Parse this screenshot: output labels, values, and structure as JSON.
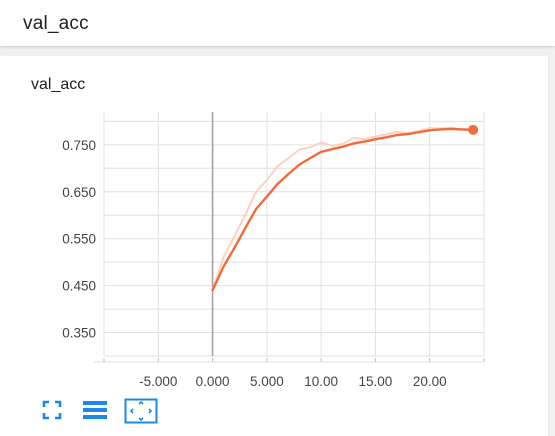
{
  "header": {
    "title": "val_acc"
  },
  "card": {
    "title": "val_acc"
  },
  "colors": {
    "series": "#f26b3a",
    "raw": "#fcd3c3",
    "grid": "#e0e0e0",
    "axis": "#9e9e9e",
    "icon": "#1e88e5"
  },
  "toolbar": {
    "fit_icon": "fullscreen-icon",
    "legend_icon": "list-icon",
    "zoom_icon": "fit-domain-icon"
  },
  "chart_data": {
    "type": "line",
    "title": "val_acc",
    "xlim": [
      -10,
      25
    ],
    "ylim": [
      0.3,
      0.82
    ],
    "xticks": [
      -5,
      0,
      5,
      10,
      15,
      20
    ],
    "xtick_labels": [
      "-5.000",
      "0.000",
      "5.000",
      "10.00",
      "15.00",
      "20.00"
    ],
    "yticks": [
      0.35,
      0.45,
      0.55,
      0.65,
      0.75
    ],
    "ytick_labels": [
      "0.350",
      "0.450",
      "0.550",
      "0.650",
      "0.750"
    ],
    "grid": true,
    "series": [
      {
        "role": "raw",
        "x": [
          0,
          1,
          2,
          3,
          4,
          5,
          6,
          7,
          8,
          9,
          10,
          11,
          12,
          13,
          14,
          15,
          16,
          17,
          18,
          19,
          20,
          21,
          22,
          23,
          24
        ],
        "values": [
          0.44,
          0.51,
          0.555,
          0.6,
          0.65,
          0.675,
          0.705,
          0.722,
          0.74,
          0.745,
          0.755,
          0.748,
          0.752,
          0.765,
          0.762,
          0.768,
          0.772,
          0.778,
          0.775,
          0.78,
          0.786,
          0.785,
          0.787,
          0.782,
          0.781
        ]
      },
      {
        "role": "smoothed",
        "x": [
          0,
          1,
          2,
          3,
          4,
          5,
          6,
          7,
          8,
          9,
          10,
          11,
          12,
          13,
          14,
          15,
          16,
          17,
          18,
          19,
          20,
          21,
          22,
          23,
          24
        ],
        "values": [
          0.44,
          0.49,
          0.53,
          0.572,
          0.613,
          0.64,
          0.667,
          0.688,
          0.708,
          0.722,
          0.735,
          0.741,
          0.746,
          0.753,
          0.757,
          0.762,
          0.766,
          0.771,
          0.773,
          0.777,
          0.781,
          0.783,
          0.784,
          0.783,
          0.782
        ]
      }
    ]
  }
}
